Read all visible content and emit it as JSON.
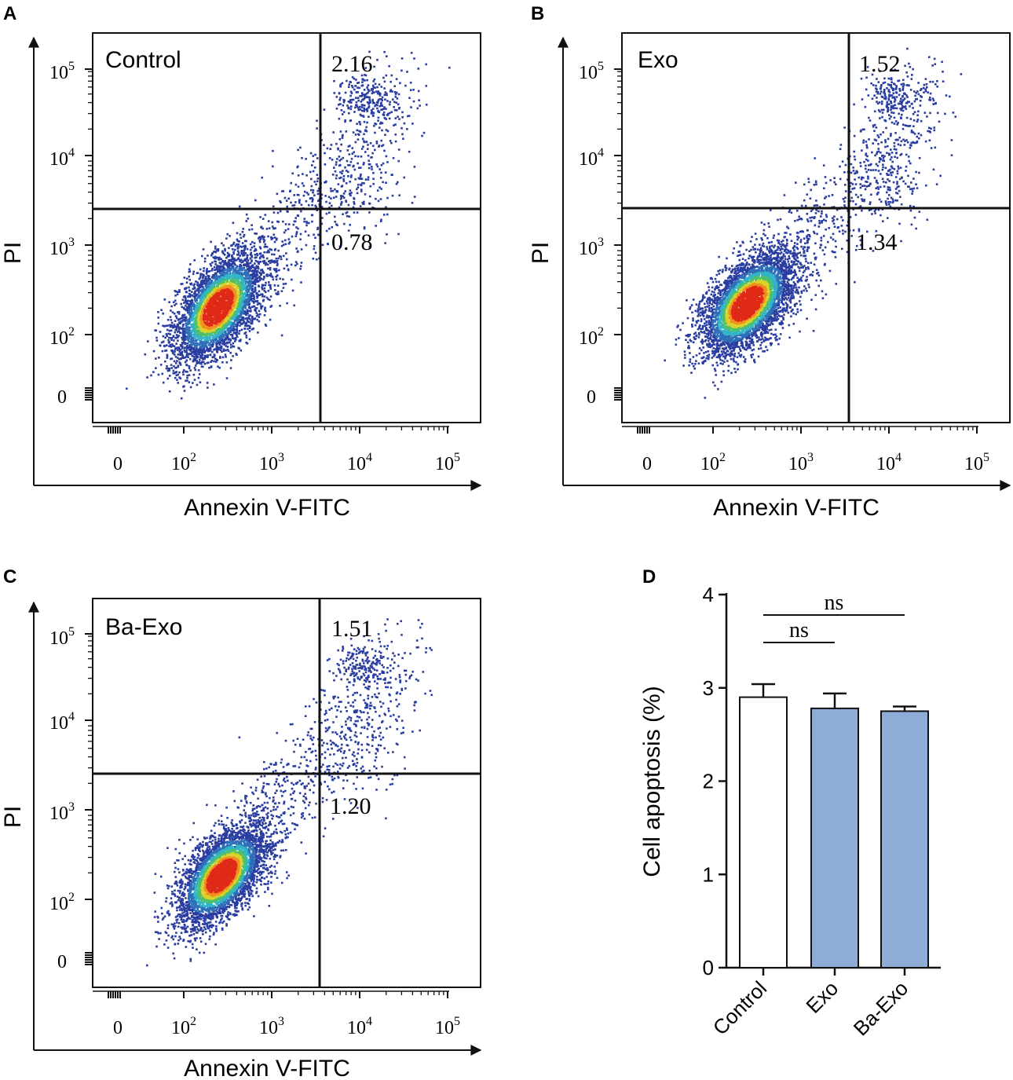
{
  "chart_data": [
    {
      "panel_label": "A",
      "type": "scatter",
      "sample": "Control",
      "xlabel": "Annexin V-FITC",
      "ylabel": "PI",
      "x_ticks": [
        {
          "base": "0",
          "exp": ""
        },
        {
          "base": "10",
          "exp": "2"
        },
        {
          "base": "10",
          "exp": "3"
        },
        {
          "base": "10",
          "exp": "4"
        },
        {
          "base": "10",
          "exp": "5"
        }
      ],
      "y_ticks": [
        {
          "base": "0",
          "exp": ""
        },
        {
          "base": "10",
          "exp": "2"
        },
        {
          "base": "10",
          "exp": "3"
        },
        {
          "base": "10",
          "exp": "4"
        },
        {
          "base": "10",
          "exp": "5"
        }
      ],
      "quadrants": {
        "upper_right": "2.16",
        "lower_right": "0.78"
      },
      "gate": {
        "x_decade": 3.3,
        "y_decade": 3.4
      },
      "density_center": [
        1.5,
        1.3
      ]
    },
    {
      "panel_label": "B",
      "type": "scatter",
      "sample": "Exo",
      "xlabel": "Annexin V-FITC",
      "ylabel": "PI",
      "x_ticks": [
        {
          "base": "0",
          "exp": ""
        },
        {
          "base": "10",
          "exp": "2"
        },
        {
          "base": "10",
          "exp": "3"
        },
        {
          "base": "10",
          "exp": "4"
        },
        {
          "base": "10",
          "exp": "5"
        }
      ],
      "y_ticks": [
        {
          "base": "0",
          "exp": ""
        },
        {
          "base": "10",
          "exp": "2"
        },
        {
          "base": "10",
          "exp": "3"
        },
        {
          "base": "10",
          "exp": "4"
        },
        {
          "base": "10",
          "exp": "5"
        }
      ],
      "quadrants": {
        "upper_right": "1.52",
        "lower_right": "1.34"
      },
      "gate": {
        "x_decade": 3.5,
        "y_decade": 3.4
      },
      "density_center": [
        1.5,
        1.35
      ]
    },
    {
      "panel_label": "C",
      "type": "scatter",
      "sample": "Ba-Exo",
      "xlabel": "Annexin V-FITC",
      "ylabel": "PI",
      "x_ticks": [
        {
          "base": "0",
          "exp": ""
        },
        {
          "base": "10",
          "exp": "2"
        },
        {
          "base": "10",
          "exp": "3"
        },
        {
          "base": "10",
          "exp": "4"
        },
        {
          "base": "10",
          "exp": "5"
        }
      ],
      "y_ticks": [
        {
          "base": "0",
          "exp": ""
        },
        {
          "base": "10",
          "exp": "2"
        },
        {
          "base": "10",
          "exp": "3"
        },
        {
          "base": "10",
          "exp": "4"
        },
        {
          "base": "10",
          "exp": "5"
        }
      ],
      "quadrants": {
        "upper_right": "1.51",
        "lower_right": "1.20"
      },
      "gate": {
        "x_decade": 3.3,
        "y_decade": 3.4
      },
      "density_center": [
        1.55,
        1.25
      ]
    },
    {
      "panel_label": "D",
      "type": "bar",
      "categories": [
        "Control",
        "Exo",
        "Ba-Exo"
      ],
      "values": [
        2.9,
        2.78,
        2.75
      ],
      "errors": [
        0.14,
        0.16,
        0.05
      ],
      "colors": [
        "#ffffff",
        "#8eacd6",
        "#8eacd6"
      ],
      "ylabel": "Cell apoptosis (%)",
      "ylim": [
        0,
        4
      ],
      "yticks": [
        "0",
        "1",
        "2",
        "3",
        "4"
      ],
      "significance": [
        {
          "from": 0,
          "to": 1,
          "label": "ns"
        },
        {
          "from": 0,
          "to": 2,
          "label": "ns"
        }
      ]
    }
  ],
  "colors": {
    "axis": "#111111",
    "density": [
      "#2a3da0",
      "#2f6fb8",
      "#33b5c8",
      "#4fc06a",
      "#d8d22a",
      "#f0901e",
      "#e02a18"
    ]
  }
}
